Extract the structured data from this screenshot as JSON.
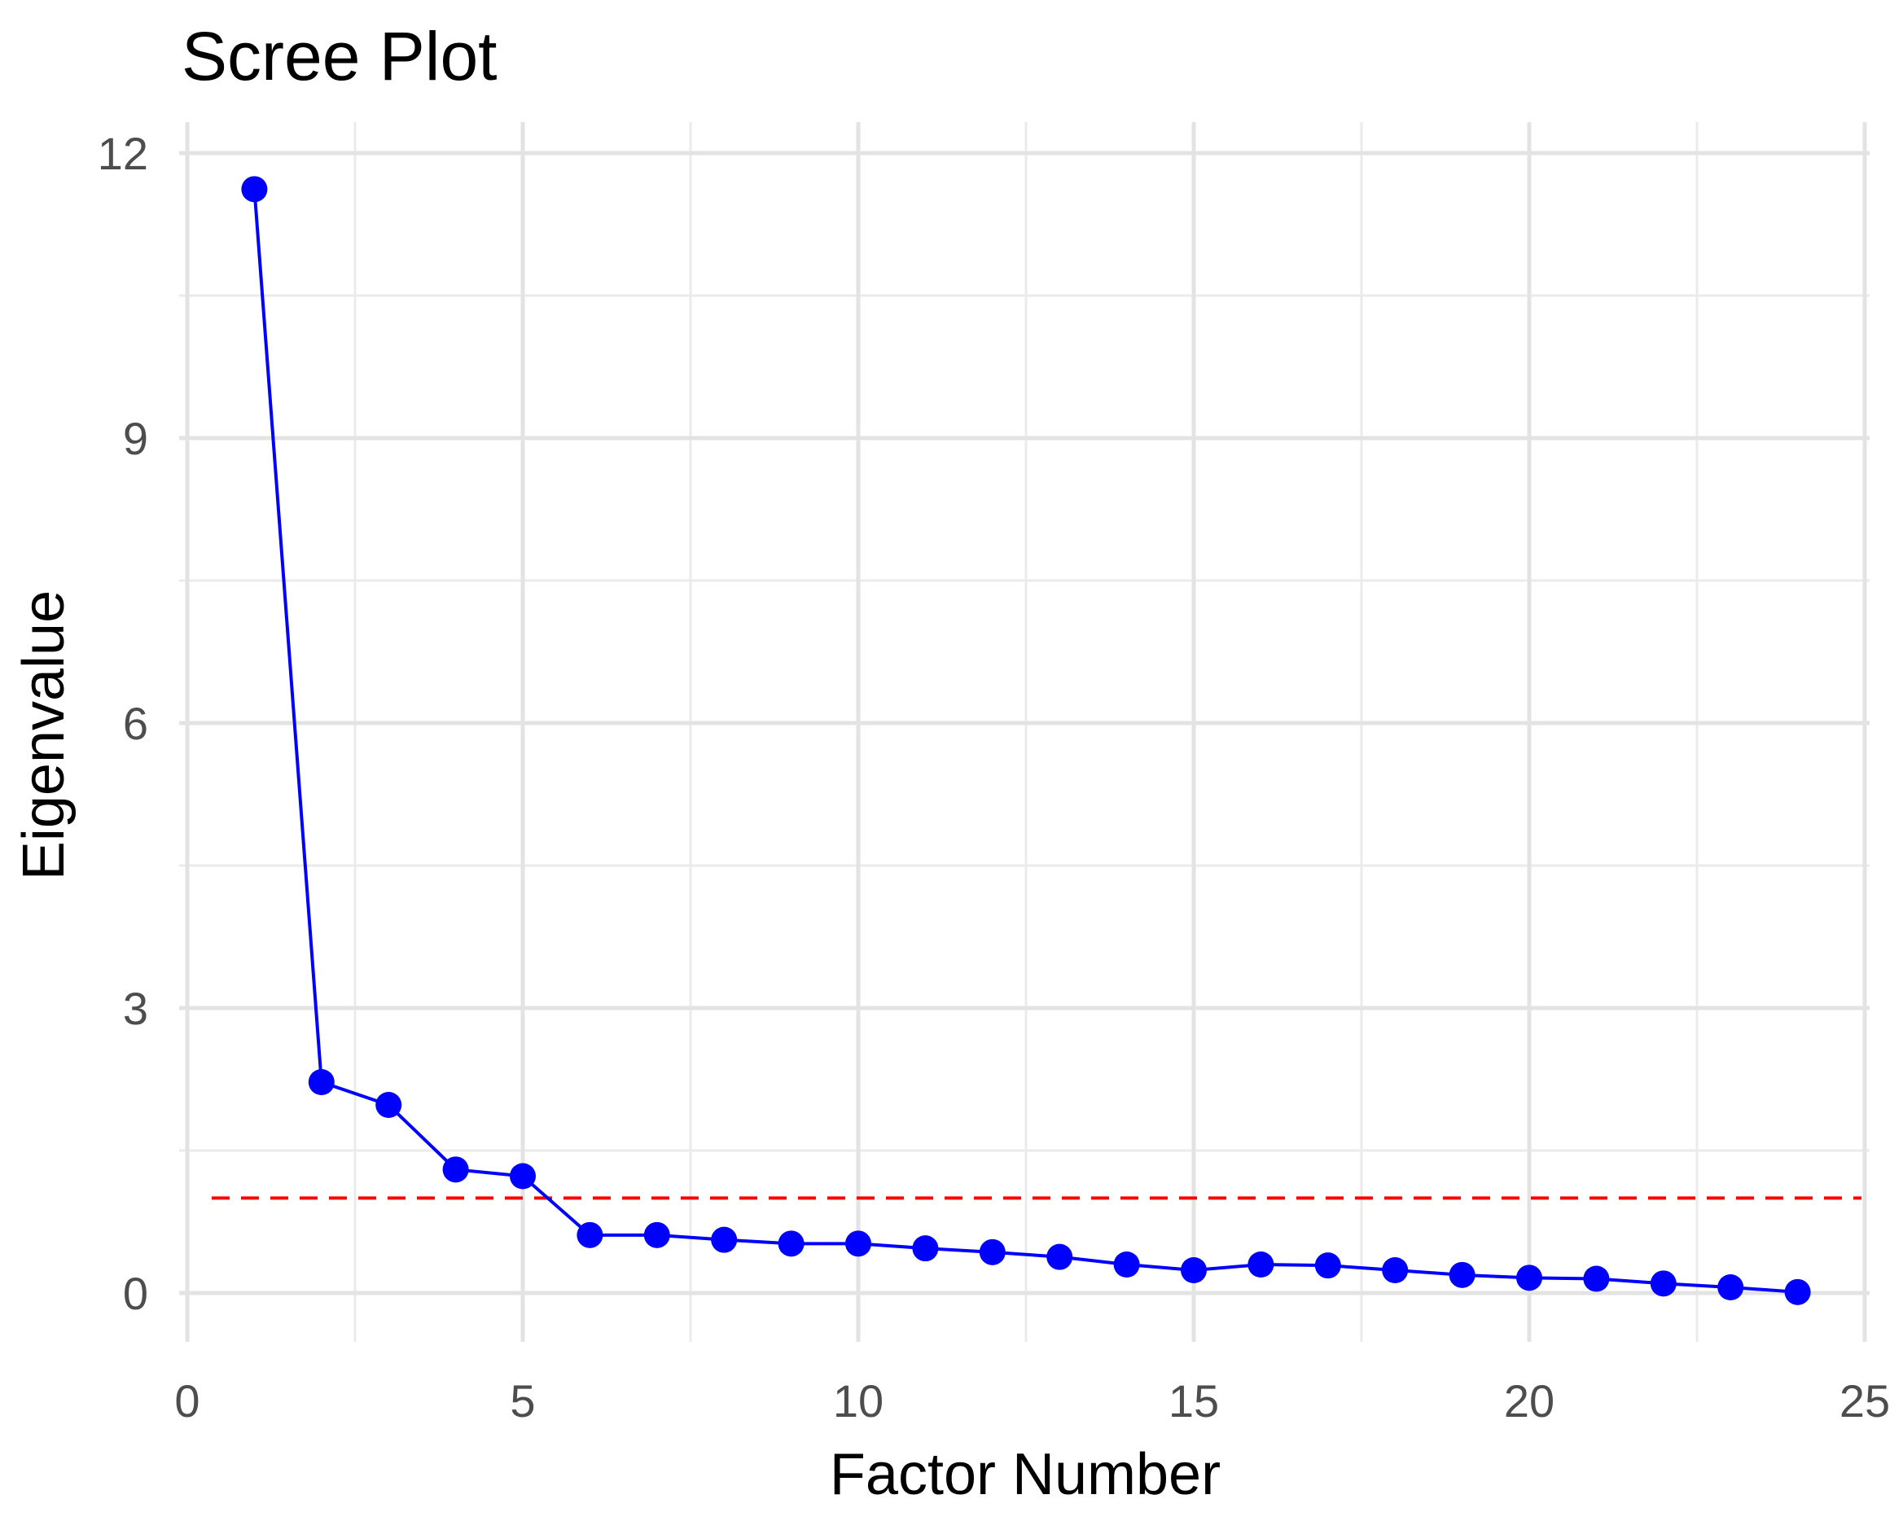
{
  "chart_data": {
    "type": "line",
    "title": "Scree Plot",
    "xlabel": "Factor Number",
    "ylabel": "Eigenvalue",
    "xlim": [
      0,
      25
    ],
    "ylim": [
      0,
      12
    ],
    "x_ticks": [
      0,
      5,
      10,
      15,
      20,
      25
    ],
    "y_ticks": [
      0,
      3,
      6,
      9,
      12
    ],
    "x_tick_labels": [
      "0",
      "5",
      "10",
      "15",
      "20",
      "25"
    ],
    "y_tick_labels": [
      "0",
      "3",
      "6",
      "9",
      "12"
    ],
    "grid": true,
    "series": [
      {
        "x": [
          1,
          2,
          3,
          4,
          5,
          6,
          7,
          8,
          9,
          10,
          11,
          12,
          13,
          14,
          15,
          16,
          17,
          18,
          19,
          20,
          21,
          22,
          23,
          24
        ],
        "values": [
          11.62,
          2.22,
          1.98,
          1.3,
          1.23,
          0.61,
          0.61,
          0.56,
          0.52,
          0.52,
          0.47,
          0.43,
          0.38,
          0.3,
          0.24,
          0.3,
          0.29,
          0.24,
          0.19,
          0.16,
          0.15,
          0.1,
          0.06,
          0.01
        ],
        "color": "#0000ff",
        "marker": "circle"
      }
    ],
    "reference_line": {
      "y": 1,
      "color": "#ff0000",
      "style": "dashed"
    }
  }
}
